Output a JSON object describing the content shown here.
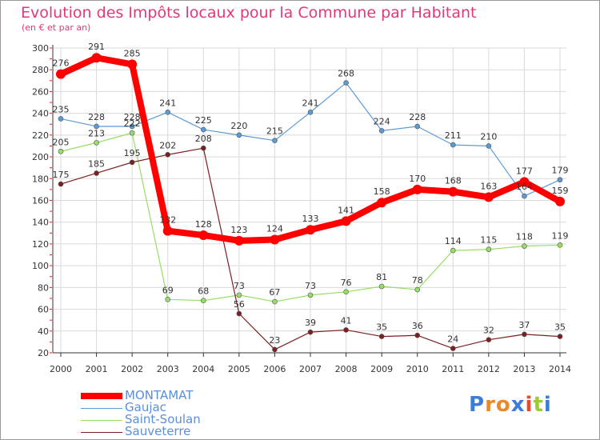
{
  "header": {
    "title": "Evolution des Impôts locaux pour la Commune par Habitant",
    "subtitle": "(en € et par an)"
  },
  "colors": {
    "title": "#e0397b",
    "grid": "#d9d9d9",
    "axis": "#333333"
  },
  "logo": {
    "text": "Proxiti"
  },
  "chart_data": {
    "type": "line",
    "title": "Evolution des Impôts locaux pour la Commune par Habitant",
    "subtitle": "(en € et par an)",
    "xlabel": "",
    "ylabel": "",
    "x": [
      "2000",
      "2001",
      "2002",
      "2003",
      "2004",
      "2005",
      "2006",
      "2007",
      "2008",
      "2009",
      "2010",
      "2011",
      "2012",
      "2013",
      "2014"
    ],
    "ylim": [
      20,
      300
    ],
    "yticks": [
      20,
      40,
      60,
      80,
      100,
      120,
      140,
      160,
      180,
      200,
      220,
      240,
      260,
      280,
      300
    ],
    "grid": true,
    "legend_position": "bottom-left",
    "series": [
      {
        "name": "MONTAMAT",
        "color": "#ff0000",
        "values": [
          276,
          291,
          285,
          132,
          128,
          123,
          124,
          133,
          141,
          158,
          170,
          168,
          163,
          177,
          159
        ]
      },
      {
        "name": "Gaujac",
        "color": "#5b9bd5",
        "values": [
          235,
          228,
          228,
          241,
          225,
          220,
          215,
          241,
          268,
          224,
          228,
          211,
          210,
          164,
          179
        ]
      },
      {
        "name": "Saint-Soulan",
        "color": "#99dd66",
        "values": [
          205,
          213,
          222,
          69,
          68,
          73,
          67,
          73,
          76,
          81,
          78,
          114,
          115,
          118,
          119
        ]
      },
      {
        "name": "Sauveterre",
        "color": "#7a2020",
        "values": [
          175,
          185,
          195,
          202,
          208,
          56,
          23,
          39,
          41,
          35,
          36,
          24,
          32,
          37,
          35
        ]
      }
    ]
  }
}
